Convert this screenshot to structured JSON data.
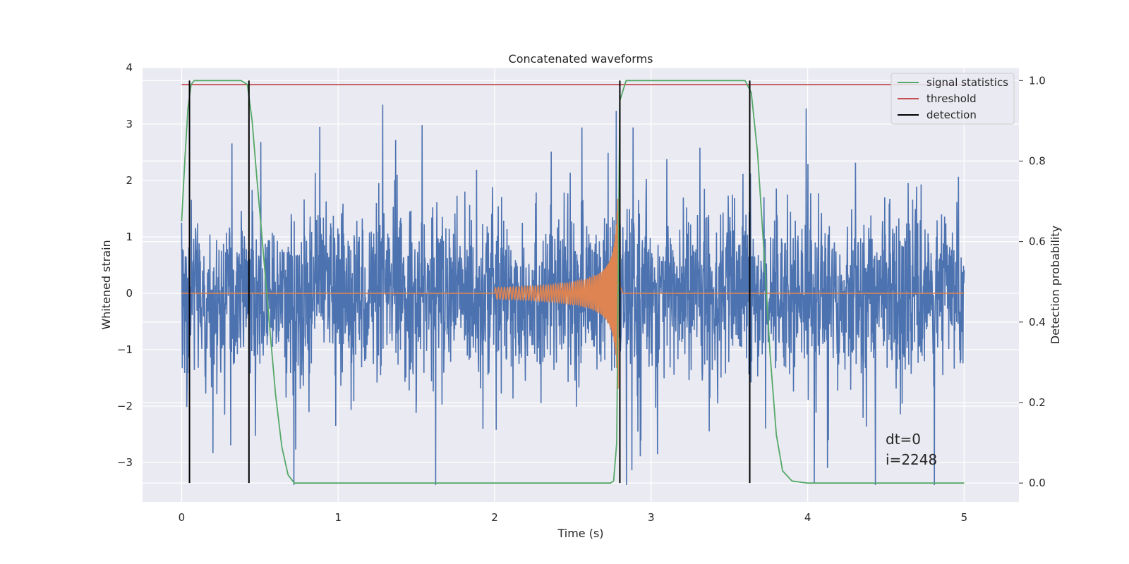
{
  "chart_data": {
    "type": "line",
    "title": "Concatenated waveforms",
    "xlabel": "Time (s)",
    "ylabel": "Whitened strain",
    "y2label": "Detection probability",
    "xlim": [
      -0.25,
      5.35
    ],
    "ylim": [
      -3.7,
      4.0
    ],
    "y2lim": [
      -0.047,
      1.032
    ],
    "xticks": [
      0,
      1,
      2,
      3,
      4,
      5
    ],
    "yticks": [
      -3,
      -2,
      -1,
      0,
      1,
      2,
      3,
      4
    ],
    "yticklabels": [
      "−3",
      "−2",
      "−1",
      "0",
      "1",
      "2",
      "3",
      "4"
    ],
    "y2ticks": [
      0.0,
      0.2,
      0.4,
      0.6,
      0.8,
      1.0
    ],
    "y2ticklabels": [
      "0.0",
      "0.2",
      "0.4",
      "0.6",
      "0.8",
      "1.0"
    ],
    "grid": true,
    "legend_position": "top-right",
    "legend": [
      {
        "label": "signal statistics",
        "color": "#55a868"
      },
      {
        "label": "threshold",
        "color": "#c44e52"
      },
      {
        "label": "detection",
        "color": "#000000"
      }
    ],
    "annotations": [
      "dt=0",
      "i=2248"
    ],
    "series": [
      {
        "type": "noise",
        "color": "#4c72b0",
        "x_range": [
          0,
          5
        ],
        "typical_abs_max": 1.5,
        "peak_max": 3.7,
        "peak_min": -3.4
      },
      {
        "type": "chirp",
        "color": "#dd8452",
        "x_range": [
          0,
          5
        ],
        "chirp_start": 2.0,
        "chirp_end": 2.79,
        "amplitude_start": 0.1,
        "amplitude_peak": 1.7
      },
      {
        "name": "signal statistics",
        "axis": "right",
        "color": "#55a868",
        "x": [
          0.0,
          0.02,
          0.04,
          0.06,
          0.08,
          0.12,
          0.2,
          0.3,
          0.38,
          0.42,
          0.45,
          0.48,
          0.52,
          0.56,
          0.6,
          0.64,
          0.68,
          0.72,
          0.8,
          1.5,
          2.5,
          2.74,
          2.76,
          2.78,
          2.8,
          2.84,
          3.0,
          3.4,
          3.6,
          3.64,
          3.68,
          3.72,
          3.76,
          3.8,
          3.84,
          3.9,
          4.0,
          5.0
        ],
        "y": [
          0.65,
          0.8,
          0.93,
          0.99,
          1.0,
          1.0,
          1.0,
          1.0,
          1.0,
          0.99,
          0.9,
          0.76,
          0.58,
          0.4,
          0.22,
          0.09,
          0.02,
          0.0,
          0.0,
          0.0,
          0.0,
          0.0,
          0.005,
          0.1,
          0.95,
          1.0,
          1.0,
          1.0,
          1.0,
          0.97,
          0.82,
          0.58,
          0.32,
          0.12,
          0.03,
          0.005,
          0.0,
          0.0
        ]
      },
      {
        "name": "threshold",
        "axis": "right",
        "color": "#c44e52",
        "x": [
          0,
          5
        ],
        "y": [
          0.99,
          0.99
        ]
      }
    ],
    "detections": [
      0.05,
      0.43,
      2.8,
      3.63
    ]
  }
}
